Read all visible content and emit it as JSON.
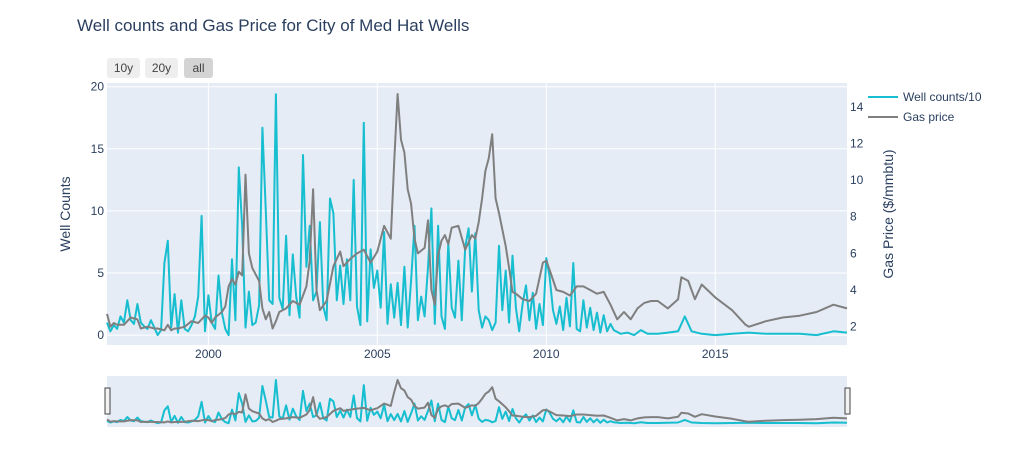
{
  "chart_data": {
    "type": "line",
    "title": "Well counts and Gas Price for City of Med Hat Wells",
    "ylabel": "Well Counts",
    "y2label": "Gas Price ($/mmbtu)",
    "xlabel": "",
    "xlim": [
      1997.0,
      2018.9
    ],
    "ylim": [
      -0.8,
      20.3
    ],
    "y2lim": [
      1.0,
      15.3
    ],
    "x_ticks": [
      "2000",
      "2005",
      "2010",
      "2015"
    ],
    "x_tick_values": [
      2000,
      2005,
      2010,
      2015
    ],
    "y_ticks": [
      "0",
      "5",
      "10",
      "15",
      "20"
    ],
    "y_tick_values": [
      0,
      5,
      10,
      15,
      20
    ],
    "y2_ticks": [
      "2",
      "4",
      "6",
      "8",
      "10",
      "12",
      "14"
    ],
    "y2_tick_values": [
      2,
      4,
      6,
      8,
      10,
      12,
      14
    ],
    "grid": true,
    "legend_position": "top-right",
    "range_selector": [
      "10y",
      "20y",
      "all"
    ],
    "range_selector_active": "all",
    "range_slider": true,
    "series": [
      {
        "name": "Well counts/10",
        "axis": "y",
        "color": "#17becf",
        "x": [
          1997.0,
          1997.1,
          1997.2,
          1997.3,
          1997.4,
          1997.5,
          1997.6,
          1997.7,
          1997.8,
          1997.9,
          1998.0,
          1998.1,
          1998.2,
          1998.3,
          1998.4,
          1998.5,
          1998.6,
          1998.7,
          1998.8,
          1998.9,
          1999.0,
          1999.1,
          1999.2,
          1999.3,
          1999.4,
          1999.5,
          1999.6,
          1999.7,
          1999.8,
          1999.9,
          2000.0,
          2000.1,
          2000.2,
          2000.3,
          2000.4,
          2000.5,
          2000.6,
          2000.7,
          2000.8,
          2000.9,
          2001.0,
          2001.1,
          2001.2,
          2001.3,
          2001.4,
          2001.5,
          2001.6,
          2001.7,
          2001.8,
          2001.9,
          2002.0,
          2002.1,
          2002.2,
          2002.3,
          2002.4,
          2002.5,
          2002.6,
          2002.7,
          2002.8,
          2002.9,
          2003.0,
          2003.1,
          2003.2,
          2003.3,
          2003.4,
          2003.5,
          2003.6,
          2003.7,
          2003.8,
          2003.9,
          2004.0,
          2004.1,
          2004.2,
          2004.3,
          2004.4,
          2004.5,
          2004.6,
          2004.7,
          2004.8,
          2004.9,
          2005.0,
          2005.1,
          2005.2,
          2005.3,
          2005.4,
          2005.5,
          2005.6,
          2005.7,
          2005.8,
          2005.9,
          2006.0,
          2006.1,
          2006.2,
          2006.3,
          2006.4,
          2006.5,
          2006.6,
          2006.7,
          2006.8,
          2006.9,
          2007.0,
          2007.1,
          2007.2,
          2007.3,
          2007.4,
          2007.5,
          2007.6,
          2007.7,
          2007.8,
          2007.9,
          2008.0,
          2008.1,
          2008.2,
          2008.3,
          2008.4,
          2008.5,
          2008.6,
          2008.7,
          2008.8,
          2008.9,
          2009.0,
          2009.1,
          2009.2,
          2009.3,
          2009.4,
          2009.5,
          2009.6,
          2009.7,
          2009.8,
          2009.9,
          2010.0,
          2010.1,
          2010.2,
          2010.3,
          2010.4,
          2010.5,
          2010.6,
          2010.7,
          2010.8,
          2010.9,
          2011.0,
          2011.1,
          2011.2,
          2011.3,
          2011.4,
          2011.5,
          2011.6,
          2011.7,
          2011.8,
          2011.9,
          2012.0,
          2012.2,
          2012.4,
          2012.6,
          2012.8,
          2013.0,
          2013.3,
          2013.6,
          2013.9,
          2014.1,
          2014.3,
          2014.6,
          2015.0,
          2015.5,
          2016.0,
          2016.5,
          2017.0,
          2017.5,
          2018.0,
          2018.5,
          2018.9
        ],
        "values": [
          1.0,
          0.3,
          0.8,
          0.5,
          1.5,
          1.0,
          2.8,
          1.2,
          0.9,
          2.5,
          1.0,
          0.7,
          0.5,
          1.2,
          0.6,
          0.0,
          0.4,
          5.8,
          7.6,
          0.6,
          3.3,
          0.2,
          2.8,
          0.5,
          0.3,
          0.8,
          1.5,
          3.1,
          9.6,
          0.3,
          3.2,
          1.0,
          0.5,
          4.8,
          1.8,
          0.5,
          0.0,
          6.1,
          1.2,
          13.5,
          8.7,
          0.6,
          3.5,
          0.8,
          1.0,
          2.4,
          16.7,
          10.0,
          2.8,
          2.5,
          19.4,
          3.0,
          2.1,
          8.0,
          1.6,
          6.5,
          3.1,
          1.4,
          14.5,
          5.5,
          8.8,
          2.8,
          3.5,
          9.1,
          2.3,
          1.2,
          11.0,
          9.8,
          2.8,
          5.6,
          2.5,
          6.1,
          2.8,
          12.5,
          2.3,
          0.8,
          17.1,
          1.1,
          6.9,
          3.8,
          5.2,
          2.2,
          8.3,
          0.9,
          4.1,
          1.4,
          4.2,
          0.8,
          5.5,
          0.6,
          4.4,
          8.8,
          1.2,
          3.1,
          1.5,
          5.5,
          10.2,
          0.9,
          8.8,
          1.5,
          0.5,
          7.4,
          2.2,
          1.4,
          6.0,
          1.2,
          7.1,
          8.6,
          3.5,
          8.2,
          2.0,
          0.6,
          1.5,
          1.2,
          0.4,
          1.0,
          7.2,
          2.0,
          5.2,
          1.0,
          6.4,
          2.2,
          0.3,
          2.5,
          4.0,
          1.2,
          3.4,
          0.5,
          2.5,
          0.8,
          6.2,
          4.7,
          2.0,
          0.9,
          2.3,
          0.4,
          3.0,
          0.7,
          5.8,
          0.5,
          0.3,
          2.8,
          0.6,
          2.2,
          0.4,
          1.8,
          0.2,
          1.6,
          0.3,
          0.9,
          0.4,
          0.1,
          0.2,
          0.0,
          0.4,
          0.1,
          0.1,
          0.2,
          0.3,
          1.5,
          0.3,
          0.1,
          0.0,
          0.1,
          0.2,
          0.1,
          0.1,
          0.1,
          0.0,
          0.3,
          0.2
        ]
      },
      {
        "name": "Gas price",
        "axis": "y2",
        "color": "#7f7f7f",
        "x": [
          1997.0,
          1997.1,
          1997.2,
          1997.3,
          1997.5,
          1997.7,
          1997.9,
          1998.0,
          1998.2,
          1998.4,
          1998.5,
          1998.7,
          1998.8,
          1998.9,
          1999.0,
          1999.1,
          1999.3,
          1999.5,
          1999.7,
          1999.9,
          2000.0,
          2000.1,
          2000.2,
          2000.4,
          2000.5,
          2000.6,
          2000.7,
          2000.8,
          2000.9,
          2001.0,
          2001.1,
          2001.2,
          2001.3,
          2001.5,
          2001.6,
          2001.7,
          2001.8,
          2001.9,
          2002.0,
          2002.1,
          2002.3,
          2002.5,
          2002.7,
          2002.9,
          2003.0,
          2003.1,
          2003.2,
          2003.3,
          2003.5,
          2003.7,
          2003.9,
          2004.0,
          2004.2,
          2004.4,
          2004.6,
          2004.8,
          2005.0,
          2005.2,
          2005.4,
          2005.5,
          2005.6,
          2005.7,
          2005.8,
          2005.9,
          2006.0,
          2006.1,
          2006.2,
          2006.4,
          2006.5,
          2006.6,
          2006.7,
          2006.8,
          2006.9,
          2007.0,
          2007.1,
          2007.2,
          2007.4,
          2007.6,
          2007.8,
          2007.9,
          2008.0,
          2008.1,
          2008.2,
          2008.3,
          2008.4,
          2008.5,
          2008.6,
          2008.8,
          2008.9,
          2009.0,
          2009.1,
          2009.3,
          2009.5,
          2009.7,
          2009.9,
          2010.0,
          2010.1,
          2010.3,
          2010.5,
          2010.7,
          2010.9,
          2011.1,
          2011.3,
          2011.5,
          2011.7,
          2011.9,
          2012.1,
          2012.3,
          2012.5,
          2012.7,
          2012.9,
          2013.1,
          2013.3,
          2013.6,
          2013.9,
          2014.0,
          2014.2,
          2014.4,
          2014.6,
          2015.0,
          2015.5,
          2015.9,
          2016.0,
          2016.5,
          2017.0,
          2017.5,
          2018.0,
          2018.5,
          2018.9
        ],
        "values": [
          2.7,
          2.0,
          2.2,
          2.1,
          2.1,
          2.5,
          2.4,
          1.9,
          2.0,
          1.9,
          1.9,
          1.8,
          2.1,
          1.8,
          1.9,
          1.9,
          2.0,
          2.3,
          2.2,
          2.6,
          2.5,
          2.2,
          2.5,
          2.8,
          3.1,
          4.2,
          4.6,
          4.3,
          5.0,
          4.8,
          10.3,
          6.0,
          5.2,
          4.5,
          3.0,
          2.4,
          2.8,
          1.9,
          2.3,
          2.8,
          3.0,
          3.4,
          3.2,
          4.2,
          5.6,
          9.5,
          4.0,
          2.9,
          3.4,
          5.3,
          6.1,
          5.3,
          5.7,
          6.0,
          6.2,
          5.5,
          6.1,
          7.5,
          6.8,
          11.0,
          14.7,
          12.2,
          11.5,
          9.5,
          8.7,
          6.8,
          6.0,
          6.3,
          7.8,
          4.0,
          3.2,
          5.9,
          6.7,
          7.0,
          6.5,
          7.4,
          7.5,
          6.2,
          7.0,
          6.8,
          7.7,
          9.0,
          10.5,
          11.2,
          12.5,
          9.0,
          8.2,
          6.4,
          5.2,
          3.9,
          3.8,
          3.5,
          3.4,
          3.8,
          5.5,
          5.6,
          5.1,
          4.0,
          3.9,
          3.7,
          4.2,
          4.2,
          4.0,
          3.8,
          3.9,
          3.2,
          2.4,
          2.8,
          2.4,
          3.0,
          3.3,
          3.4,
          3.4,
          3.0,
          3.5,
          4.7,
          4.5,
          3.5,
          4.3,
          3.6,
          2.9,
          2.1,
          2.0,
          2.3,
          2.5,
          2.6,
          2.8,
          3.2,
          3.0
        ]
      }
    ]
  }
}
